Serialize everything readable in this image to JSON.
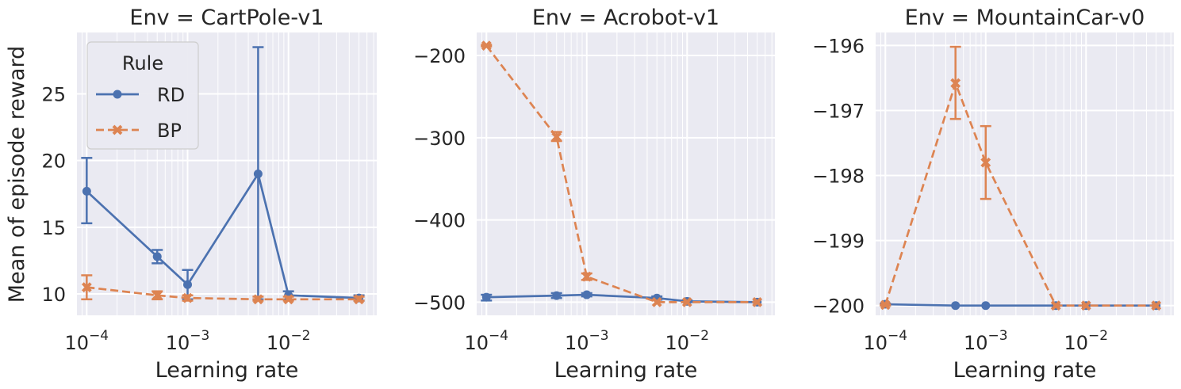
{
  "figure": {
    "ylabel": "Mean of episode reward",
    "xlabel": "Learning rate",
    "legend": {
      "title": "Rule",
      "placement": "top-left of first panel",
      "entries": [
        {
          "name": "RD",
          "color": "#4c72b0",
          "marker": "circle",
          "linestyle": "solid"
        },
        {
          "name": "BP",
          "color": "#dd8452",
          "marker": "x",
          "linestyle": "dashed"
        }
      ]
    },
    "style": {
      "background": "#eaeaf2",
      "grid": true,
      "grid_color": "#ffffff"
    }
  },
  "chart_data": [
    {
      "type": "line",
      "title": "Env = CartPole-v1",
      "xlabel": "Learning rate",
      "ylabel": "Mean of episode reward",
      "xscale": "log",
      "xlim": [
        8e-05,
        0.075
      ],
      "ylim": [
        8.4,
        29.6
      ],
      "yticks": [
        10,
        15,
        20,
        25
      ],
      "ytick_labels": [
        "10",
        "15",
        "20",
        "25"
      ],
      "xticks": [
        0.0001,
        0.001,
        0.01
      ],
      "x": [
        0.0001,
        0.0005,
        0.001,
        0.005,
        0.01,
        0.05
      ],
      "series": [
        {
          "name": "RD",
          "values": [
            17.7,
            12.8,
            10.7,
            19.0,
            9.9,
            9.7
          ],
          "err_low": [
            15.3,
            12.3,
            9.6,
            9.6,
            9.6,
            9.5
          ],
          "err_high": [
            20.2,
            13.3,
            11.8,
            28.5,
            10.2,
            9.9
          ]
        },
        {
          "name": "BP",
          "values": [
            10.5,
            9.9,
            9.7,
            9.6,
            9.6,
            9.6
          ],
          "err_low": [
            9.6,
            9.6,
            9.5,
            9.5,
            9.5,
            9.5
          ],
          "err_high": [
            11.4,
            10.2,
            9.9,
            9.8,
            9.8,
            9.8
          ]
        }
      ]
    },
    {
      "type": "line",
      "title": "Env = Acrobot-v1",
      "xlabel": "Learning rate",
      "xscale": "log",
      "xlim": [
        8e-05,
        0.075
      ],
      "ylim": [
        -516,
        -172
      ],
      "yticks": [
        -500,
        -400,
        -300,
        -200
      ],
      "ytick_labels": [
        "−500",
        "−400",
        "−300",
        "−200"
      ],
      "xticks": [
        0.0001,
        0.001,
        0.01
      ],
      "x": [
        0.0001,
        0.0005,
        0.001,
        0.005,
        0.01,
        0.05
      ],
      "series": [
        {
          "name": "RD",
          "values": [
            -494,
            -492,
            -491,
            -495,
            -499,
            -500
          ],
          "err_low": [
            -498,
            -495,
            -493,
            -497,
            -500,
            -500
          ],
          "err_high": [
            -491,
            -489,
            -489,
            -493,
            -498,
            -500
          ]
        },
        {
          "name": "BP",
          "values": [
            -188,
            -299,
            -469,
            -500,
            -500,
            -500
          ],
          "err_low": [
            -189,
            -304,
            -473,
            -500,
            -500,
            -500
          ],
          "err_high": [
            -187,
            -293,
            -465,
            -500,
            -500,
            -500
          ]
        }
      ]
    },
    {
      "type": "line",
      "title": "Env = MountainCar-v0",
      "xlabel": "Learning rate",
      "xscale": "log",
      "xlim": [
        8e-05,
        0.075
      ],
      "ylim": [
        -200.15,
        -195.8
      ],
      "yticks": [
        -200,
        -199,
        -198,
        -197,
        -196
      ],
      "ytick_labels": [
        "−200",
        "−199",
        "−198",
        "−197",
        "−196"
      ],
      "xticks": [
        0.0001,
        0.001,
        0.01
      ],
      "x": [
        0.0001,
        0.0005,
        0.001,
        0.005,
        0.01,
        0.05
      ],
      "series": [
        {
          "name": "RD",
          "values": [
            -199.98,
            -200.0,
            -200.0,
            -200.0,
            -200.0,
            -200.0
          ],
          "err_low": [
            -200.0,
            -200.0,
            -200.0,
            -200.0,
            -200.0,
            -200.0
          ],
          "err_high": [
            -199.97,
            -200.0,
            -200.0,
            -200.0,
            -200.0,
            -200.0
          ]
        },
        {
          "name": "BP",
          "values": [
            -199.99,
            -196.58,
            -197.8,
            -200.0,
            -200.0,
            -200.0
          ],
          "err_low": [
            -200.0,
            -197.13,
            -198.36,
            -200.0,
            -200.0,
            -200.0
          ],
          "err_high": [
            -199.98,
            -196.02,
            -197.24,
            -200.0,
            -200.0,
            -200.0
          ]
        }
      ]
    }
  ]
}
